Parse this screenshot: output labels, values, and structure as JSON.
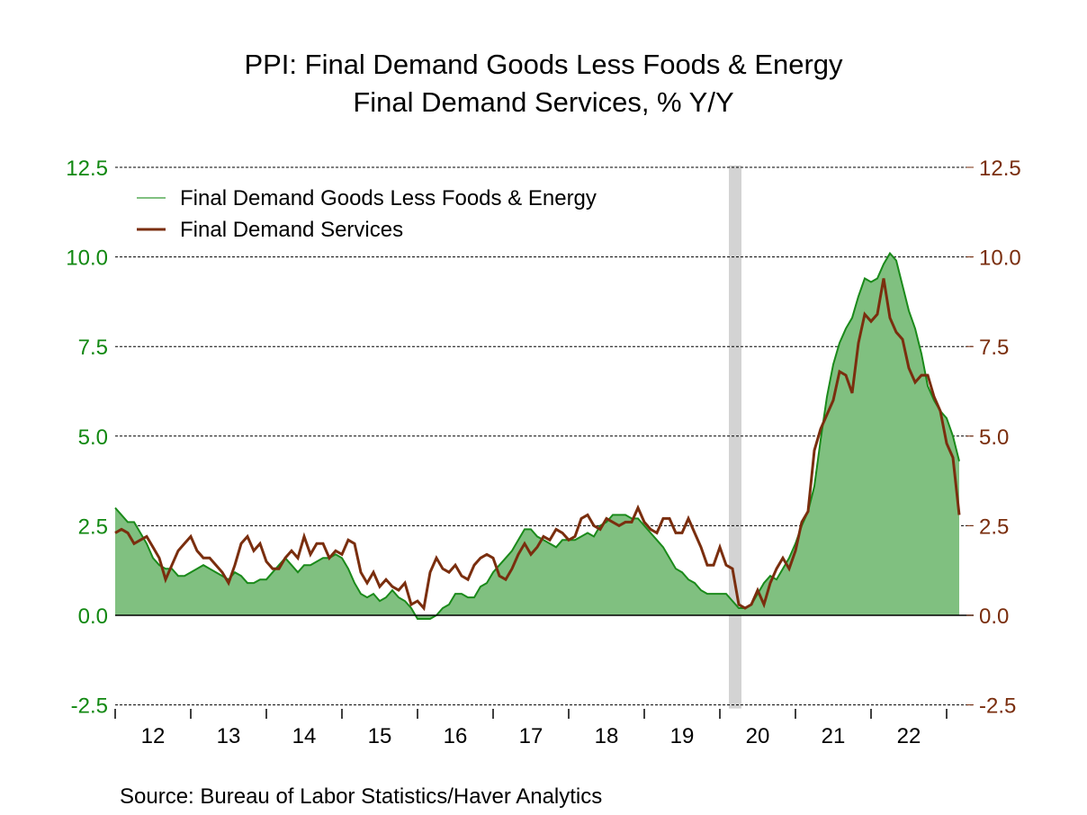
{
  "chart_data": {
    "type": "area",
    "title": "PPI: Final Demand Goods Less Foods & Energy",
    "subtitle": "Final Demand Services, % Y/Y",
    "source": "Source:  Bureau of Labor Statistics/Haver Analytics",
    "x_start": "2012-01",
    "frequency": "monthly",
    "x_tick_labels": [
      "12",
      "13",
      "14",
      "15",
      "16",
      "17",
      "18",
      "19",
      "20",
      "21",
      "22"
    ],
    "ylim": [
      -2.5,
      12.5
    ],
    "y_ticks": [
      "12.5",
      "10.0",
      "7.5",
      "5.0",
      "2.5",
      "0.0",
      "-2.5"
    ],
    "y_tick_values": [
      12.5,
      10,
      7.5,
      5,
      2.5,
      0,
      -2.5
    ],
    "grid": true,
    "legend_placement": "top-left",
    "recession_shading": {
      "start": "2020-02",
      "end": "2020-04",
      "color": "#d3d3d3"
    },
    "series": [
      {
        "name": "Final Demand Goods Less Foods & Energy",
        "axis": "left",
        "style": "area",
        "fill": "#80c080",
        "color": "#1a8a1a",
        "values": [
          3.0,
          2.8,
          2.6,
          2.6,
          2.3,
          2.0,
          1.6,
          1.4,
          1.3,
          1.3,
          1.1,
          1.1,
          1.2,
          1.3,
          1.4,
          1.3,
          1.2,
          1.1,
          1.0,
          1.2,
          1.1,
          0.9,
          0.9,
          1.0,
          1.0,
          1.2,
          1.4,
          1.6,
          1.4,
          1.2,
          1.4,
          1.4,
          1.5,
          1.6,
          1.6,
          1.7,
          1.6,
          1.3,
          0.9,
          0.6,
          0.5,
          0.6,
          0.4,
          0.5,
          0.7,
          0.5,
          0.4,
          0.2,
          -0.1,
          -0.1,
          -0.1,
          0.0,
          0.2,
          0.3,
          0.6,
          0.6,
          0.5,
          0.5,
          0.8,
          0.9,
          1.2,
          1.4,
          1.6,
          1.8,
          2.1,
          2.4,
          2.4,
          2.2,
          2.1,
          2.0,
          1.9,
          2.1,
          2.1,
          2.1,
          2.2,
          2.3,
          2.2,
          2.5,
          2.6,
          2.8,
          2.8,
          2.8,
          2.7,
          2.7,
          2.5,
          2.3,
          2.1,
          1.9,
          1.6,
          1.3,
          1.2,
          1.0,
          0.9,
          0.7,
          0.6,
          0.6,
          0.6,
          0.6,
          0.4,
          0.2,
          0.2,
          0.3,
          0.6,
          0.9,
          1.1,
          1.0,
          1.3,
          1.6,
          2.0,
          2.5,
          2.9,
          3.6,
          4.9,
          6.1,
          7.0,
          7.6,
          8.0,
          8.3,
          8.9,
          9.4,
          9.3,
          9.4,
          9.8,
          10.1,
          9.9,
          9.2,
          8.5,
          8.0,
          7.3,
          6.4,
          6.0,
          5.7,
          5.5,
          5.0,
          4.3
        ]
      },
      {
        "name": "Final Demand Services",
        "axis": "right",
        "style": "line",
        "color": "#7a2e0e",
        "values": [
          2.3,
          2.4,
          2.3,
          2.0,
          2.1,
          2.2,
          1.9,
          1.6,
          1.0,
          1.4,
          1.8,
          2.0,
          2.2,
          1.8,
          1.6,
          1.6,
          1.4,
          1.2,
          0.9,
          1.4,
          2.0,
          2.2,
          1.8,
          2.0,
          1.5,
          1.3,
          1.3,
          1.6,
          1.8,
          1.6,
          2.2,
          1.7,
          2.0,
          2.0,
          1.6,
          1.8,
          1.7,
          2.1,
          2.0,
          1.2,
          0.9,
          1.2,
          0.8,
          1.0,
          0.8,
          0.7,
          0.9,
          0.3,
          0.4,
          0.2,
          1.2,
          1.6,
          1.3,
          1.2,
          1.4,
          1.1,
          1.0,
          1.4,
          1.6,
          1.7,
          1.6,
          1.1,
          1.0,
          1.3,
          1.7,
          2.0,
          1.7,
          1.9,
          2.2,
          2.1,
          2.4,
          2.3,
          2.1,
          2.2,
          2.7,
          2.8,
          2.5,
          2.4,
          2.7,
          2.6,
          2.5,
          2.6,
          2.6,
          3.0,
          2.6,
          2.4,
          2.3,
          2.7,
          2.7,
          2.3,
          2.3,
          2.7,
          2.3,
          1.9,
          1.4,
          1.4,
          1.9,
          1.4,
          1.3,
          0.3,
          0.2,
          0.3,
          0.7,
          0.3,
          0.9,
          1.3,
          1.6,
          1.3,
          1.8,
          2.6,
          2.9,
          4.6,
          5.2,
          5.6,
          6.0,
          6.8,
          6.7,
          6.2,
          7.6,
          8.4,
          8.2,
          8.4,
          9.4,
          8.3,
          7.9,
          7.7,
          6.9,
          6.5,
          6.7,
          6.7,
          6.1,
          5.7,
          4.8,
          4.4,
          2.8
        ]
      }
    ]
  }
}
